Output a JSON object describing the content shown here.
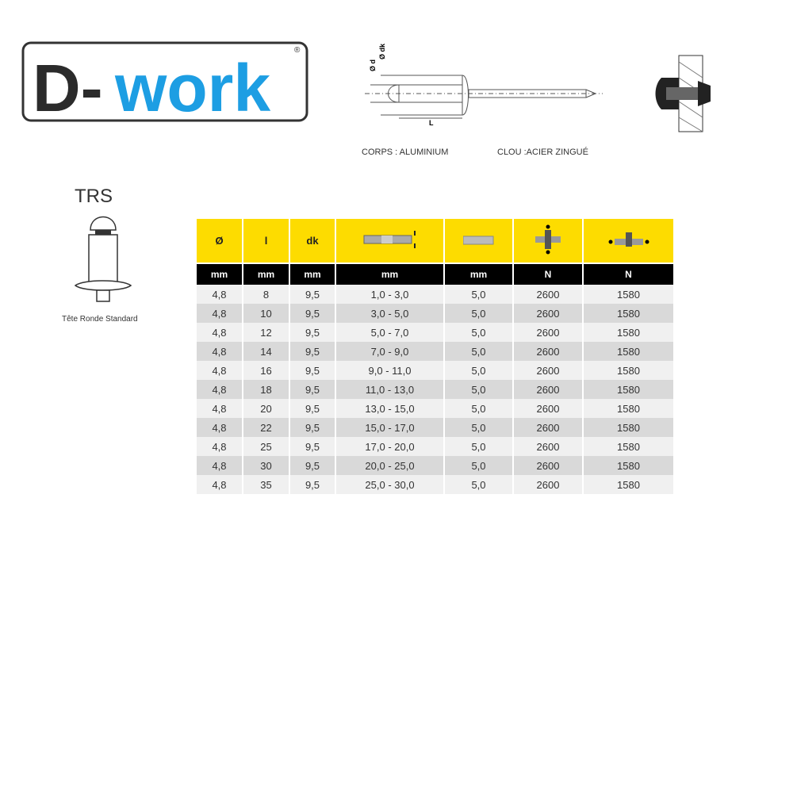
{
  "logo": {
    "text_dark": "D-",
    "text_blue": "work",
    "registered": "®",
    "brand_color": "#1d9ee3"
  },
  "diagram": {
    "label_d": "Ø d",
    "label_dk": "Ø dk",
    "label_l": "L"
  },
  "captions": {
    "body": "CORPS : ALUMINIUM",
    "mandrel": "CLOU :ACIER ZINGUÉ"
  },
  "section": {
    "title": "TRS",
    "caption": "Tête Ronde Standard"
  },
  "table": {
    "header_color": "#fddc00",
    "headers": [
      "Ø",
      "l",
      "dk",
      "grip-range-icon",
      "drill-icon",
      "shear-strength-icon",
      "tensile-strength-icon"
    ],
    "units": [
      "mm",
      "mm",
      "mm",
      "mm",
      "mm",
      "N",
      "N"
    ],
    "rows": [
      [
        "4,8",
        "8",
        "9,5",
        "1,0 - 3,0",
        "5,0",
        "2600",
        "1580"
      ],
      [
        "4,8",
        "10",
        "9,5",
        "3,0 - 5,0",
        "5,0",
        "2600",
        "1580"
      ],
      [
        "4,8",
        "12",
        "9,5",
        "5,0 - 7,0",
        "5,0",
        "2600",
        "1580"
      ],
      [
        "4,8",
        "14",
        "9,5",
        "7,0 - 9,0",
        "5,0",
        "2600",
        "1580"
      ],
      [
        "4,8",
        "16",
        "9,5",
        "9,0 - 11,0",
        "5,0",
        "2600",
        "1580"
      ],
      [
        "4,8",
        "18",
        "9,5",
        "11,0 - 13,0",
        "5,0",
        "2600",
        "1580"
      ],
      [
        "4,8",
        "20",
        "9,5",
        "13,0 - 15,0",
        "5,0",
        "2600",
        "1580"
      ],
      [
        "4,8",
        "22",
        "9,5",
        "15,0 - 17,0",
        "5,0",
        "2600",
        "1580"
      ],
      [
        "4,8",
        "25",
        "9,5",
        "17,0 - 20,0",
        "5,0",
        "2600",
        "1580"
      ],
      [
        "4,8",
        "30",
        "9,5",
        "20,0 - 25,0",
        "5,0",
        "2600",
        "1580"
      ],
      [
        "4,8",
        "35",
        "9,5",
        "25,0 - 30,0",
        "5,0",
        "2600",
        "1580"
      ]
    ]
  }
}
